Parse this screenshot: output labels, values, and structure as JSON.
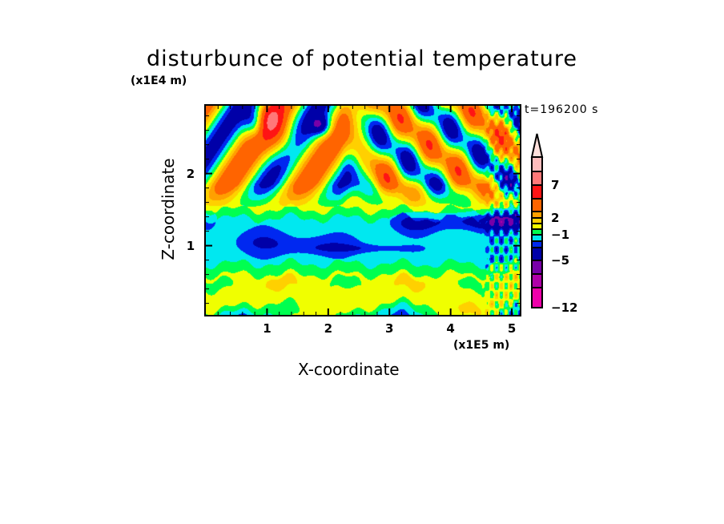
{
  "chart_data": {
    "type": "heatmap",
    "subtype": "filled-contour",
    "title": "disturbunce of potential temperature",
    "xlabel": "X-coordinate",
    "ylabel": "Z-coordinate",
    "x_unit": "(x1E5 m)",
    "y_unit": "(x1E4 m)",
    "time_label": "t=196200 s",
    "xlim": [
      0,
      5.13
    ],
    "ylim": [
      0.04,
      2.94
    ],
    "xticks": [
      {
        "v": 1,
        "label": "1"
      },
      {
        "v": 2,
        "label": "2"
      },
      {
        "v": 3,
        "label": "3"
      },
      {
        "v": 4,
        "label": "4"
      },
      {
        "v": 5,
        "label": "5"
      }
    ],
    "yticks": [
      {
        "v": 1,
        "label": "1"
      },
      {
        "v": 2,
        "label": "2"
      }
    ],
    "colorbar": {
      "levels": [
        -12,
        -9,
        -7,
        -5,
        -3,
        -2,
        -1,
        0,
        1,
        2,
        3,
        5,
        7,
        9,
        12
      ],
      "colors": [
        "#ee00aa",
        "#b000a8",
        "#7800a8",
        "#0000a8",
        "#0028f0",
        "#00e8f0",
        "#00ff50",
        "#f0ff00",
        "#ffd000",
        "#ffa000",
        "#ff6400",
        "#ff1414",
        "#ff7878",
        "#ffbcbc"
      ],
      "over_color": "#ffe0dc",
      "tick_labels": [
        {
          "v": 7,
          "label": "7"
        },
        {
          "v": 2,
          "label": "2"
        },
        {
          "v": -1,
          "label": "−1"
        },
        {
          "v": -5,
          "label": "−5"
        },
        {
          "v": -12,
          "label": "−12"
        }
      ]
    },
    "field_features": [
      {
        "x": 0.9,
        "z": 1.05,
        "sx": 0.35,
        "sz": 0.12,
        "a": -1.3
      },
      {
        "x": 1.9,
        "z": 1.0,
        "sx": 0.5,
        "sz": 0.1,
        "a": -1.3
      },
      {
        "x": 2.6,
        "z": 0.96,
        "sx": 0.6,
        "sz": 0.04,
        "a": -1.0
      },
      {
        "x": 3.4,
        "z": 1.3,
        "sx": 0.25,
        "sz": 0.1,
        "a": -1.4
      },
      {
        "x": 4.3,
        "z": 1.33,
        "sx": 0.7,
        "sz": 0.08,
        "a": -1.6
      },
      {
        "x": 4.9,
        "z": 1.35,
        "sx": 0.3,
        "sz": 0.1,
        "a": -2.8
      },
      {
        "x": 0.05,
        "z": 1.35,
        "sx": 0.1,
        "sz": 0.1,
        "a": -1.3
      },
      {
        "x": 1.9,
        "z": 2.65,
        "sx": 0.12,
        "sz": 0.1,
        "a": -4
      },
      {
        "x": 1.25,
        "z": 2.45,
        "sx": 0.2,
        "sz": 0.2,
        "a": 3
      },
      {
        "x": 1.05,
        "z": 2.75,
        "sx": 0.15,
        "sz": 0.15,
        "a": 3
      },
      {
        "x": 0.8,
        "z": 2.7,
        "sx": 0.12,
        "sz": 0.15,
        "a": -4
      }
    ]
  }
}
